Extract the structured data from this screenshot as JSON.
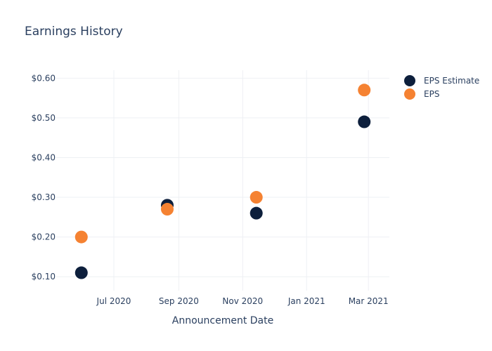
{
  "chart_data": {
    "type": "scatter",
    "title": "Earnings History",
    "xlabel": "Announcement Date",
    "ylabel": "",
    "x_tick_labels": [
      "Jul 2020",
      "Sep 2020",
      "Nov 2020",
      "Jan 2021",
      "Mar 2021"
    ],
    "x_ticks": [
      "2020-07-01",
      "2020-09-01",
      "2020-11-01",
      "2021-01-01",
      "2021-03-01"
    ],
    "xlim": [
      "2020-05-07",
      "2021-03-21"
    ],
    "y_tick_labels": [
      "$0.10",
      "$0.20",
      "$0.30",
      "$0.40",
      "$0.50",
      "$0.60"
    ],
    "y_ticks": [
      0.1,
      0.2,
      0.3,
      0.4,
      0.5,
      0.6
    ],
    "ylim": [
      0.065,
      0.62
    ],
    "grid": true,
    "legend_position": "top-right",
    "series": [
      {
        "name": "EPS Estimate",
        "color": "#0d1f3c",
        "points": [
          {
            "x": "2020-05-31",
            "y": 0.11
          },
          {
            "x": "2020-08-21",
            "y": 0.28
          },
          {
            "x": "2020-11-14",
            "y": 0.26
          },
          {
            "x": "2021-02-25",
            "y": 0.49
          }
        ]
      },
      {
        "name": "EPS",
        "color": "#f58232",
        "points": [
          {
            "x": "2020-05-31",
            "y": 0.2
          },
          {
            "x": "2020-08-21",
            "y": 0.27
          },
          {
            "x": "2020-11-14",
            "y": 0.3
          },
          {
            "x": "2021-02-25",
            "y": 0.57
          }
        ]
      }
    ]
  }
}
